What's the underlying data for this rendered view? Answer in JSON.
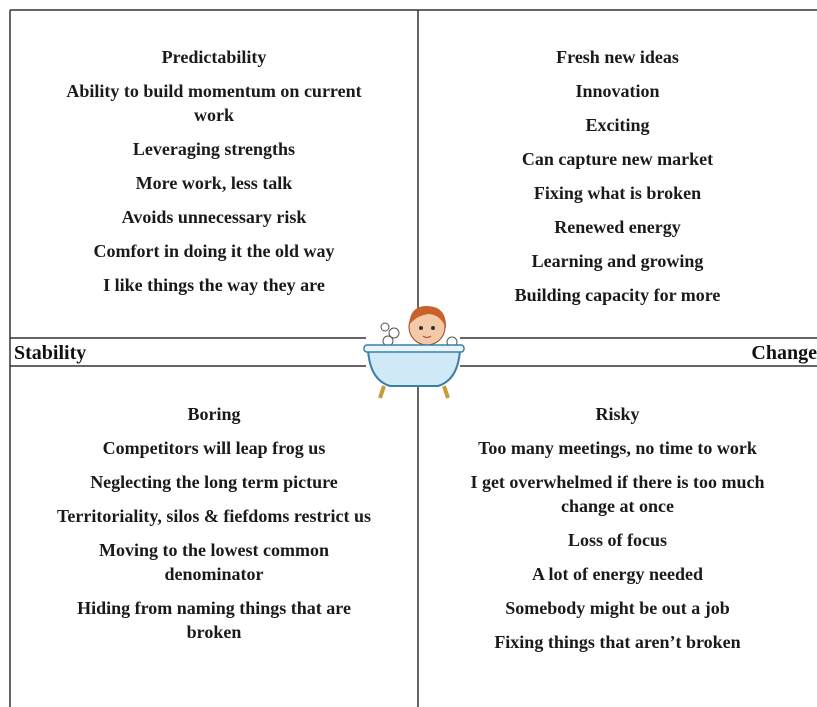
{
  "axis_labels": {
    "left": "Stability",
    "right": "Change"
  },
  "quadrants": [
    {
      "items": [
        [
          "Predictability"
        ],
        [
          "Ability to build momentum on current",
          "work"
        ],
        [
          "Leveraging strengths"
        ],
        [
          "More work, less talk"
        ],
        [
          "Avoids unnecessary risk"
        ],
        [
          "Comfort in doing it the old way"
        ],
        [
          "I like things the way they are"
        ]
      ]
    },
    {
      "items": [
        [
          "Fresh new ideas"
        ],
        [
          "Innovation"
        ],
        [
          "Exciting"
        ],
        [
          "Can capture new market"
        ],
        [
          "Fixing what is broken"
        ],
        [
          "Renewed energy"
        ],
        [
          "Learning and growing"
        ],
        [
          "Building capacity for more"
        ]
      ]
    },
    {
      "items": [
        [
          "Boring"
        ],
        [
          "Competitors will leap frog us"
        ],
        [
          "Neglecting the long term picture"
        ],
        [
          "Territoriality, silos & fiefdoms restrict us"
        ],
        [
          "Moving to the lowest common",
          "denominator"
        ],
        [
          "Hiding from naming things that are",
          "broken"
        ]
      ]
    },
    {
      "items": [
        [
          "Risky"
        ],
        [
          "Too many meetings, no time to work"
        ],
        [
          "I get overwhelmed if there is too much",
          "change at once"
        ],
        [
          "Loss of focus"
        ],
        [
          "A lot of energy needed"
        ],
        [
          "Somebody might be out a job"
        ],
        [
          "Fixing things that aren’t broken"
        ]
      ]
    }
  ]
}
